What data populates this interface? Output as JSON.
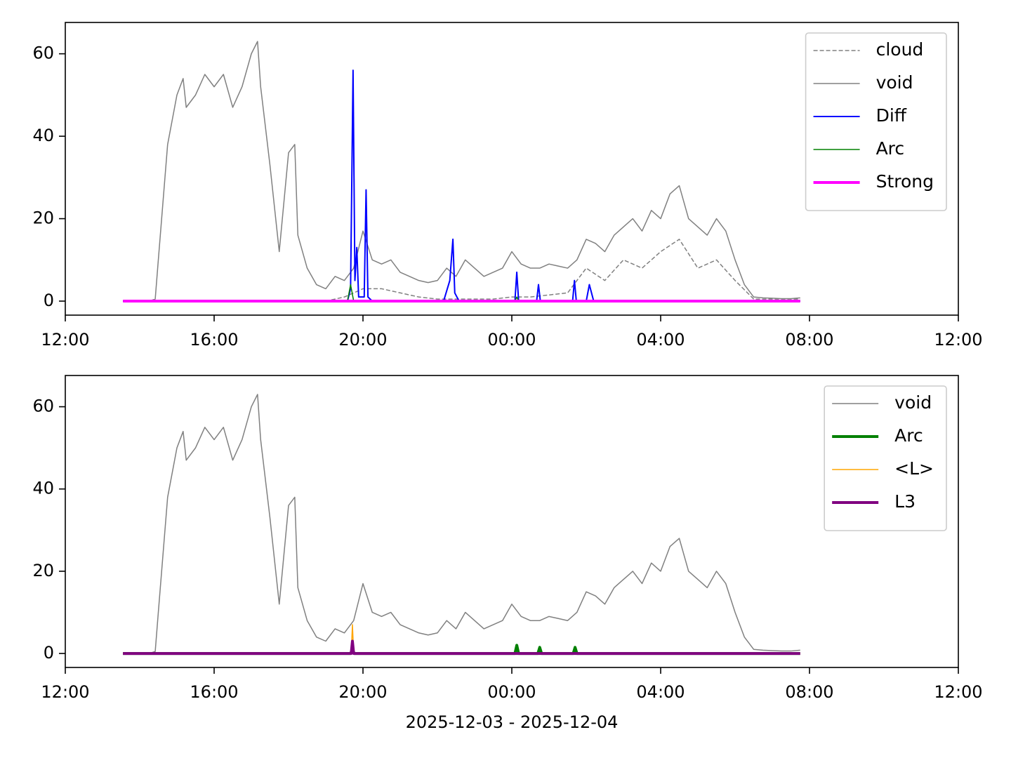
{
  "chart_data": [
    {
      "type": "line",
      "legend": "upper right",
      "xlim": [
        "12:00",
        "12:00"
      ],
      "xticks": [
        "12:00",
        "16:00",
        "20:00",
        "00:00",
        "04:00",
        "08:00",
        "12:00"
      ],
      "ylim": [
        -3.4,
        67.6
      ],
      "yticks": [
        0,
        20,
        40,
        60
      ],
      "series": [
        {
          "name": "cloud",
          "color": "#808080",
          "linestyle": "dashed",
          "linewidth": 1.5,
          "x": [
            "13:33",
            "19:00",
            "19:30",
            "20:00",
            "20:30",
            "21:00",
            "21:30",
            "22:00",
            "22:30",
            "23:00",
            "23:30",
            "00:00",
            "00:30",
            "01:00",
            "01:30",
            "02:00",
            "02:30",
            "03:00",
            "03:30",
            "04:00",
            "04:30",
            "05:00",
            "05:30",
            "06:00",
            "06:30",
            "07:00",
            "07:45"
          ],
          "values": [
            0,
            0,
            1,
            3,
            3,
            2,
            1,
            0.5,
            0.5,
            0.5,
            0.5,
            1,
            1,
            1.5,
            2,
            8,
            5,
            10,
            8,
            12,
            15,
            8,
            10,
            5,
            0.5,
            0.5,
            0.5
          ]
        },
        {
          "name": "void",
          "color": "#808080",
          "linestyle": "solid",
          "linewidth": 1.5,
          "x": [
            "13:33",
            "14:15",
            "14:25",
            "14:30",
            "14:45",
            "15:00",
            "15:10",
            "15:15",
            "15:30",
            "15:45",
            "16:00",
            "16:15",
            "16:30",
            "16:45",
            "17:00",
            "17:10",
            "17:15",
            "17:30",
            "17:45",
            "18:00",
            "18:10",
            "18:15",
            "18:30",
            "18:45",
            "19:00",
            "19:15",
            "19:30",
            "19:45",
            "20:00",
            "20:15",
            "20:30",
            "20:45",
            "21:00",
            "21:15",
            "21:30",
            "21:45",
            "22:00",
            "22:15",
            "22:30",
            "22:45",
            "23:00",
            "23:15",
            "23:30",
            "23:45",
            "00:00",
            "00:15",
            "00:30",
            "00:45",
            "01:00",
            "01:15",
            "01:30",
            "01:45",
            "02:00",
            "02:15",
            "02:30",
            "02:45",
            "03:00",
            "03:15",
            "03:30",
            "03:45",
            "04:00",
            "04:15",
            "04:30",
            "04:45",
            "05:00",
            "05:15",
            "05:30",
            "05:45",
            "06:00",
            "06:15",
            "06:30",
            "06:45",
            "07:00",
            "07:15",
            "07:30",
            "07:45"
          ],
          "values": [
            0,
            0,
            0.5,
            10,
            38,
            50,
            54,
            47,
            50,
            55,
            52,
            55,
            47,
            52,
            60,
            63,
            52,
            33,
            12,
            36,
            38,
            16,
            8,
            4,
            3,
            6,
            5,
            8,
            17,
            10,
            9,
            10,
            7,
            6,
            5,
            4.5,
            5,
            8,
            6,
            10,
            8,
            6,
            7,
            8,
            12,
            9,
            8,
            8,
            9,
            8.5,
            8,
            10,
            15,
            14,
            12,
            16,
            18,
            20,
            17,
            22,
            20,
            26,
            28,
            20,
            18,
            16,
            20,
            17,
            10,
            4,
            1,
            0.8,
            0.7,
            0.6,
            0.6,
            0.8
          ]
        },
        {
          "name": "Diff",
          "color": "#0000ff",
          "linestyle": "solid",
          "linewidth": 2,
          "x": [
            "13:33",
            "19:35",
            "19:40",
            "19:44",
            "19:47",
            "19:50",
            "19:53",
            "20:02",
            "20:05",
            "20:08",
            "20:15",
            "22:10",
            "22:20",
            "22:25",
            "22:28",
            "22:35",
            "00:05",
            "00:08",
            "00:11",
            "00:40",
            "00:43",
            "00:46",
            "01:38",
            "01:41",
            "01:44",
            "02:00",
            "02:05",
            "02:12",
            "07:45"
          ],
          "values": [
            0,
            0,
            3,
            56,
            5,
            13,
            1,
            1,
            27,
            1,
            0,
            0,
            5,
            15,
            2,
            0,
            0,
            7,
            0,
            0,
            4,
            0,
            0,
            5,
            0,
            0,
            4,
            0,
            0
          ]
        },
        {
          "name": "Arc",
          "color": "#008000",
          "linestyle": "solid",
          "linewidth": 1.5,
          "x": [
            "13:33",
            "19:35",
            "19:40",
            "19:45",
            "00:05",
            "00:08",
            "00:11",
            "07:45"
          ],
          "values": [
            0,
            0,
            4,
            0,
            0,
            1,
            0,
            0
          ]
        },
        {
          "name": "Strong",
          "color": "#ff00ff",
          "linestyle": "solid",
          "linewidth": 4,
          "x": [
            "13:33",
            "07:45"
          ],
          "values": [
            0,
            0
          ]
        }
      ]
    },
    {
      "type": "line",
      "legend": "upper right",
      "xlabel": "2025-12-03 - 2025-12-04",
      "xlim": [
        "12:00",
        "12:00"
      ],
      "xticks": [
        "12:00",
        "16:00",
        "20:00",
        "00:00",
        "04:00",
        "08:00",
        "12:00"
      ],
      "ylim": [
        -3.4,
        67.6
      ],
      "yticks": [
        0,
        20,
        40,
        60
      ],
      "series": [
        {
          "name": "void",
          "color": "#808080",
          "linestyle": "solid",
          "linewidth": 1.5,
          "x": [
            "13:33",
            "14:15",
            "14:25",
            "14:30",
            "14:45",
            "15:00",
            "15:10",
            "15:15",
            "15:30",
            "15:45",
            "16:00",
            "16:15",
            "16:30",
            "16:45",
            "17:00",
            "17:10",
            "17:15",
            "17:30",
            "17:45",
            "18:00",
            "18:10",
            "18:15",
            "18:30",
            "18:45",
            "19:00",
            "19:15",
            "19:30",
            "19:45",
            "20:00",
            "20:15",
            "20:30",
            "20:45",
            "21:00",
            "21:15",
            "21:30",
            "21:45",
            "22:00",
            "22:15",
            "22:30",
            "22:45",
            "23:00",
            "23:15",
            "23:30",
            "23:45",
            "00:00",
            "00:15",
            "00:30",
            "00:45",
            "01:00",
            "01:15",
            "01:30",
            "01:45",
            "02:00",
            "02:15",
            "02:30",
            "02:45",
            "03:00",
            "03:15",
            "03:30",
            "03:45",
            "04:00",
            "04:15",
            "04:30",
            "04:45",
            "05:00",
            "05:15",
            "05:30",
            "05:45",
            "06:00",
            "06:15",
            "06:30",
            "06:45",
            "07:00",
            "07:15",
            "07:30",
            "07:45"
          ],
          "values": [
            0,
            0,
            0.5,
            10,
            38,
            50,
            54,
            47,
            50,
            55,
            52,
            55,
            47,
            52,
            60,
            63,
            52,
            33,
            12,
            36,
            38,
            16,
            8,
            4,
            3,
            6,
            5,
            8,
            17,
            10,
            9,
            10,
            7,
            6,
            5,
            4.5,
            5,
            8,
            6,
            10,
            8,
            6,
            7,
            8,
            12,
            9,
            8,
            8,
            9,
            8.5,
            8,
            10,
            15,
            14,
            12,
            16,
            18,
            20,
            17,
            22,
            20,
            26,
            28,
            20,
            18,
            16,
            20,
            17,
            10,
            4,
            1,
            0.8,
            0.7,
            0.6,
            0.6,
            0.8
          ]
        },
        {
          "name": "Arc",
          "color": "#008000",
          "linestyle": "solid",
          "linewidth": 4,
          "x": [
            "13:33",
            "19:40",
            "19:43",
            "19:46",
            "00:05",
            "00:08",
            "00:11",
            "00:42",
            "00:45",
            "00:48",
            "01:39",
            "01:42",
            "01:45",
            "07:45"
          ],
          "values": [
            0,
            0,
            1,
            0,
            0,
            2,
            0,
            0,
            1.5,
            0,
            0,
            1.5,
            0,
            0
          ]
        },
        {
          "name": "<L>",
          "color": "#ffa500",
          "linestyle": "solid",
          "linewidth": 1.5,
          "x": [
            "13:33",
            "19:41",
            "19:43",
            "19:45",
            "07:45"
          ],
          "values": [
            0,
            0,
            7,
            0,
            0
          ]
        },
        {
          "name": "L3",
          "color": "#800080",
          "linestyle": "solid",
          "linewidth": 4,
          "x": [
            "13:33",
            "19:41",
            "19:43",
            "19:45",
            "07:45"
          ],
          "values": [
            0,
            0,
            3,
            0,
            0
          ]
        }
      ]
    }
  ]
}
